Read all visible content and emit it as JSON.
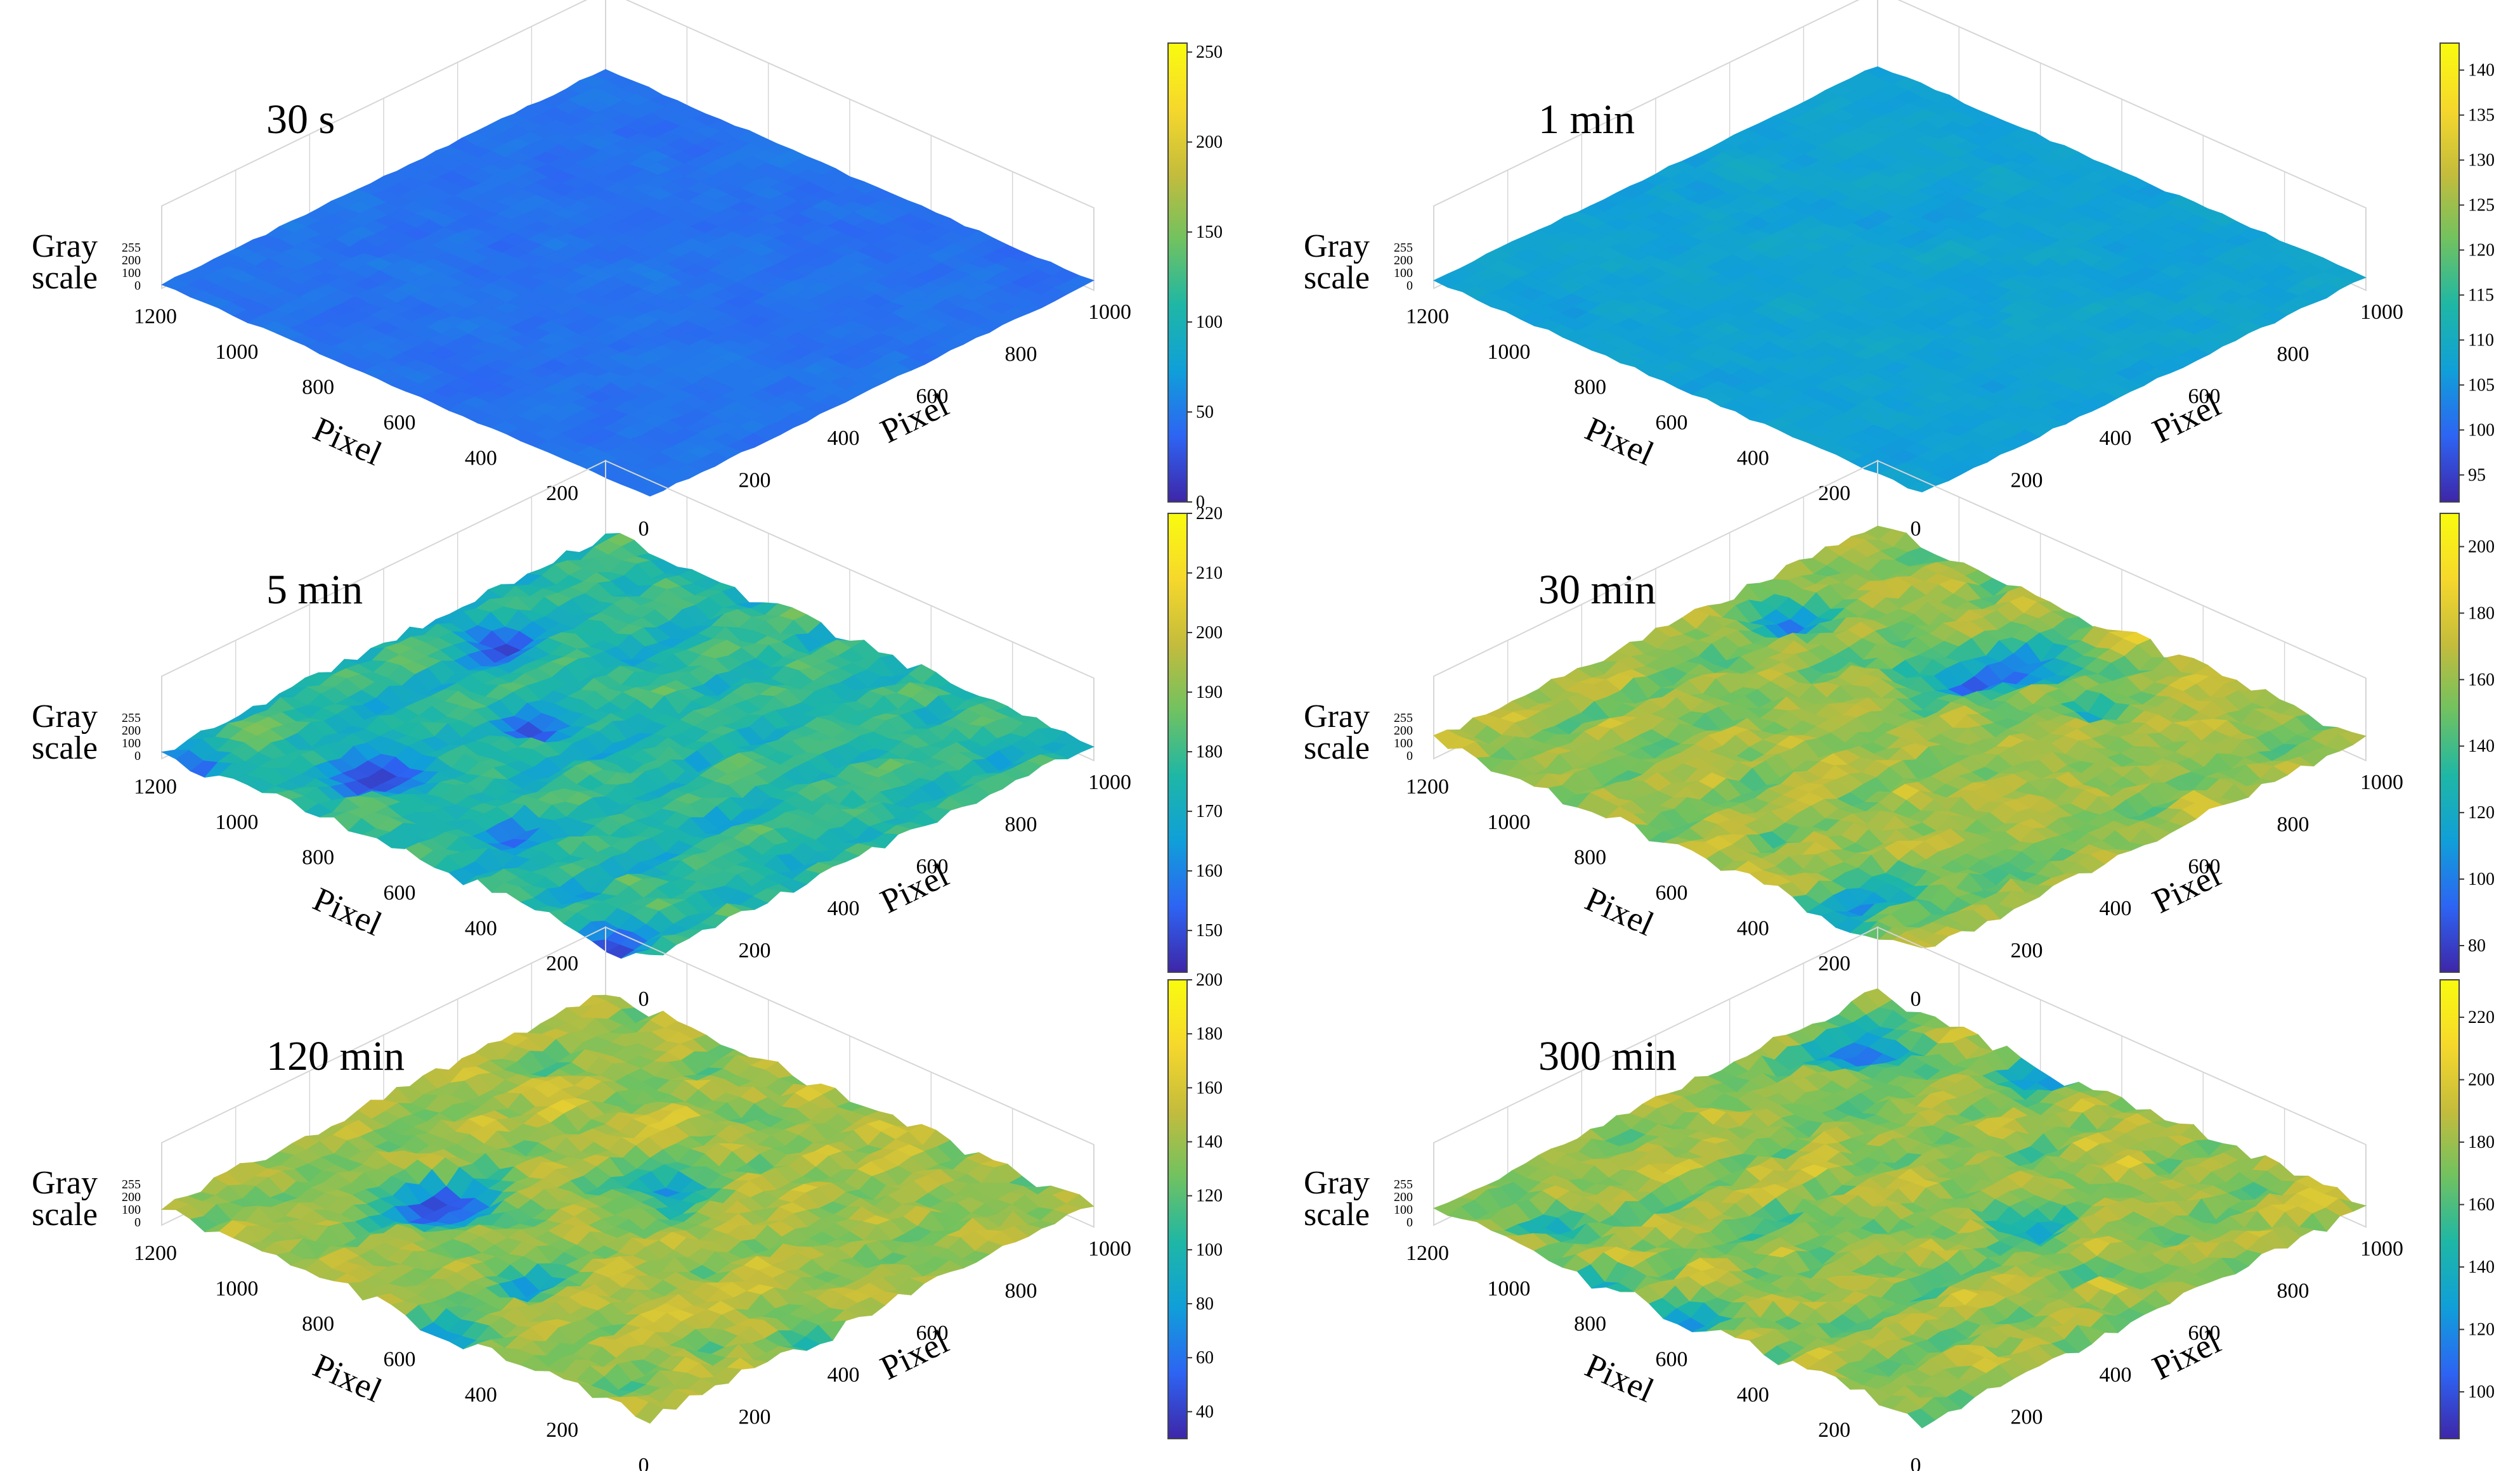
{
  "figure": {
    "colors": {
      "colormap": [
        "#3e26a8",
        "#2d64f3",
        "#109fd9",
        "#1eb7a5",
        "#70c260",
        "#c4bc3c",
        "#f6d82c",
        "#f9fb0e"
      ],
      "base_surface": "#16366e",
      "grid": "#d6d6d6"
    }
  },
  "chart_data": [
    {
      "type": "surface",
      "title": "30 s",
      "zlabel": [
        "Gray",
        "scale"
      ],
      "zticks": [
        "255",
        "200",
        "100",
        "0"
      ],
      "xlabel": "Pixel",
      "xticks": [
        "1200",
        "1000",
        "800",
        "600",
        "400",
        "200",
        "0"
      ],
      "ylabel": "Pixel",
      "yticks": [
        "200",
        "400",
        "600",
        "800",
        "1000"
      ],
      "colorbar_ticks": [
        250,
        200,
        150,
        100,
        50,
        0
      ],
      "clim": [
        0,
        255
      ],
      "level": 0.15,
      "roughness": 0.1,
      "pits": 0.0
    },
    {
      "type": "surface",
      "title": "1 min",
      "zlabel": [
        "Gray",
        "scale"
      ],
      "zticks": [
        "255",
        "200",
        "100",
        "0"
      ],
      "xlabel": "Pixel",
      "xticks": [
        "1200",
        "1000",
        "800",
        "600",
        "400",
        "200",
        "0"
      ],
      "ylabel": "Pixel",
      "yticks": [
        "200",
        "400",
        "600",
        "800",
        "1000"
      ],
      "colorbar_ticks": [
        140,
        135,
        130,
        125,
        120,
        115,
        110,
        105,
        100,
        95
      ],
      "clim": [
        92,
        143
      ],
      "level": 0.3,
      "roughness": 0.12,
      "pits": 0.0
    },
    {
      "type": "surface",
      "title": "5 min",
      "zlabel": [
        "Gray",
        "scale"
      ],
      "zticks": [
        "255",
        "200",
        "100",
        "0"
      ],
      "xlabel": "Pixel",
      "xticks": [
        "1200",
        "1000",
        "800",
        "600",
        "400",
        "200",
        "0"
      ],
      "ylabel": "Pixel",
      "yticks": [
        "200",
        "400",
        "600",
        "800",
        "1000"
      ],
      "colorbar_ticks": [
        220,
        210,
        200,
        190,
        180,
        170,
        160,
        150
      ],
      "clim": [
        143,
        220
      ],
      "level": 0.5,
      "roughness": 0.35,
      "pits": 0.35
    },
    {
      "type": "surface",
      "title": "30 min",
      "zlabel": [
        "Gray",
        "scale"
      ],
      "zticks": [
        "255",
        "200",
        "100",
        "0"
      ],
      "xlabel": "Pixel",
      "xticks": [
        "1200",
        "1000",
        "800",
        "600",
        "400",
        "200",
        "0"
      ],
      "ylabel": "Pixel",
      "yticks": [
        "200",
        "400",
        "600",
        "800",
        "1000"
      ],
      "colorbar_ticks": [
        200,
        180,
        160,
        140,
        120,
        100,
        80
      ],
      "clim": [
        72,
        210
      ],
      "level": 0.72,
      "roughness": 0.4,
      "pits": 0.3
    },
    {
      "type": "surface",
      "title": "120 min",
      "zlabel": [
        "Gray",
        "scale"
      ],
      "zticks": [
        "255",
        "200",
        "100",
        "0"
      ],
      "xlabel": "Pixel",
      "xticks": [
        "1200",
        "1000",
        "800",
        "600",
        "400",
        "200",
        "0"
      ],
      "ylabel": "Pixel",
      "yticks": [
        "200",
        "400",
        "600",
        "800",
        "1000"
      ],
      "colorbar_ticks": [
        200,
        180,
        160,
        140,
        120,
        100,
        80,
        60,
        40
      ],
      "clim": [
        30,
        200
      ],
      "level": 0.74,
      "roughness": 0.4,
      "pits": 0.28
    },
    {
      "type": "surface",
      "title": "300 min",
      "zlabel": [
        "Gray",
        "scale"
      ],
      "zticks": [
        "255",
        "200",
        "100",
        "0"
      ],
      "xlabel": "Pixel",
      "xticks": [
        "1200",
        "1000",
        "800",
        "600",
        "400",
        "200",
        "0"
      ],
      "ylabel": "Pixel",
      "yticks": [
        "200",
        "400",
        "600",
        "800",
        "1000"
      ],
      "colorbar_ticks": [
        220,
        200,
        180,
        160,
        140,
        120,
        100
      ],
      "clim": [
        85,
        232
      ],
      "level": 0.72,
      "roughness": 0.42,
      "pits": 0.3
    }
  ]
}
